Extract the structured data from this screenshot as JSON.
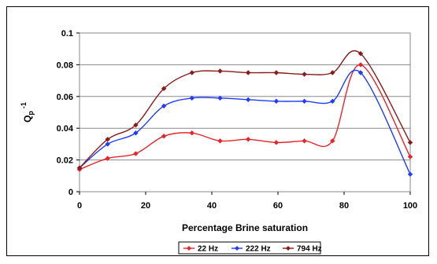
{
  "chart_data": {
    "type": "line",
    "title": "",
    "xlabel": "Percentage Brine saturation",
    "ylabel": "Q",
    "ylabel_sub": "p",
    "ylabel_sup": "-1",
    "xlim": [
      0,
      100
    ],
    "ylim": [
      0,
      0.1
    ],
    "xticks": [
      0,
      20,
      40,
      60,
      80,
      100
    ],
    "yticks": [
      0,
      0.02,
      0.04,
      0.06,
      0.08,
      0.1
    ],
    "xtick_labels": [
      "0",
      "20",
      "40",
      "60",
      "80",
      "100"
    ],
    "ytick_labels": [
      "0",
      "0.02",
      "0.04",
      "0.06",
      "0.08",
      "0.1"
    ],
    "grid": "horizontal",
    "legend": "bottom",
    "x": [
      0,
      8.5,
      17,
      25.5,
      34,
      42.5,
      51,
      59.5,
      68,
      76.5,
      85,
      100
    ],
    "series": [
      {
        "name": "22 Hz",
        "color": "#e8242b",
        "values": [
          0.014,
          0.021,
          0.024,
          0.035,
          0.037,
          0.032,
          0.033,
          0.031,
          0.032,
          0.032,
          0.08,
          0.022
        ]
      },
      {
        "name": "222 Hz",
        "color": "#1f3cff",
        "values": [
          0.015,
          0.03,
          0.037,
          0.054,
          0.059,
          0.059,
          0.058,
          0.057,
          0.057,
          0.057,
          0.075,
          0.011
        ]
      },
      {
        "name": "794 Hz",
        "color": "#8b1a1a",
        "values": [
          0.015,
          0.033,
          0.042,
          0.065,
          0.075,
          0.076,
          0.075,
          0.075,
          0.074,
          0.075,
          0.087,
          0.031
        ]
      }
    ]
  }
}
